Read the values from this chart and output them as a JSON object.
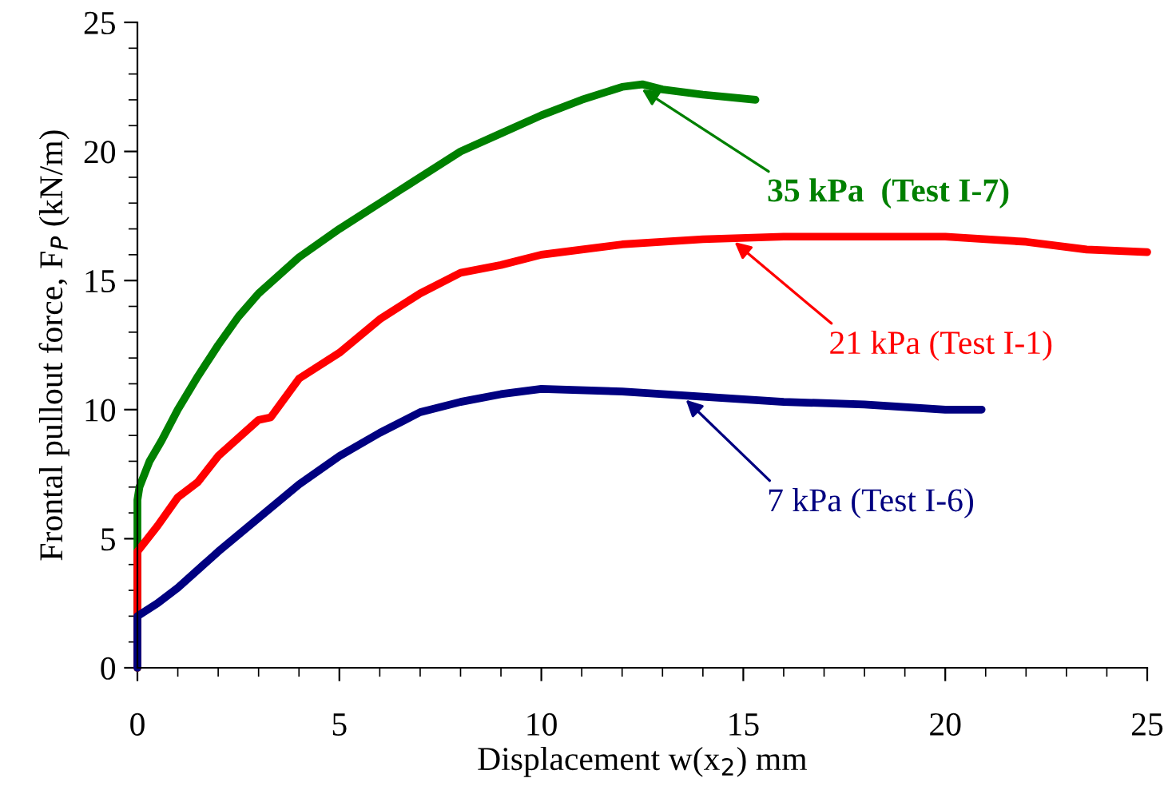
{
  "chart_data": {
    "type": "line",
    "xlabel": "Displacement w(x$_{2}$) mm",
    "ylabel": "Frontal pullout force, F$_{P}$ (kN/m)",
    "xlim": [
      0,
      25
    ],
    "xticks": [
      0,
      5,
      10,
      15,
      20,
      25
    ],
    "ylim": [
      0,
      25
    ],
    "yticks": [
      0,
      5,
      10,
      15,
      20,
      25
    ],
    "grid": false,
    "legend": false,
    "marker": "none",
    "line_style": "solid",
    "series": [
      {
        "color": "#008000",
        "x": [
          0,
          0,
          0.05,
          0.3,
          0.6,
          1,
          1.5,
          2,
          2.5,
          3,
          4,
          5,
          6,
          7,
          8,
          9,
          10,
          11,
          12,
          12.5,
          13,
          14,
          15.3
        ],
        "values": [
          0,
          6.5,
          7,
          8,
          8.8,
          10,
          11.3,
          12.5,
          13.6,
          14.5,
          15.9,
          17.0,
          18.0,
          19.0,
          20.0,
          20.7,
          21.4,
          22.0,
          22.5,
          22.6,
          22.4,
          22.2,
          22.0
        ]
      },
      {
        "color": "#ff0000",
        "x": [
          0,
          0,
          0.5,
          1,
          1.5,
          2,
          3,
          3.3,
          4,
          5,
          6,
          7,
          8,
          9,
          10,
          12,
          14,
          16,
          18,
          20,
          22,
          23.5,
          25
        ],
        "values": [
          0,
          4.5,
          5.5,
          6.6,
          7.2,
          8.2,
          9.6,
          9.7,
          11.2,
          12.2,
          13.5,
          14.5,
          15.3,
          15.6,
          16.0,
          16.4,
          16.6,
          16.7,
          16.7,
          16.7,
          16.5,
          16.2,
          16.1
        ]
      },
      {
        "color": "#000080",
        "x": [
          0,
          0,
          0.5,
          1,
          2,
          3,
          4,
          5,
          6,
          7,
          8,
          9,
          10,
          12,
          14,
          16,
          18,
          20,
          20.9
        ],
        "values": [
          0,
          2,
          2.5,
          3.1,
          4.5,
          5.8,
          7.1,
          8.2,
          9.1,
          9.9,
          10.3,
          10.6,
          10.8,
          10.7,
          10.5,
          10.3,
          10.2,
          10.0,
          10.0
        ]
      }
    ],
    "annotations": [
      {
        "text": "35 kPa  (Test I-7)",
        "x": 12.4,
        "y": 22.5
      },
      {
        "text": "21 kPa (Test I-1)",
        "x": 14.7,
        "y": 16.6
      },
      {
        "text": "7 kPa (Test I-6)",
        "x": 13.5,
        "y": 10.5
      }
    ]
  }
}
